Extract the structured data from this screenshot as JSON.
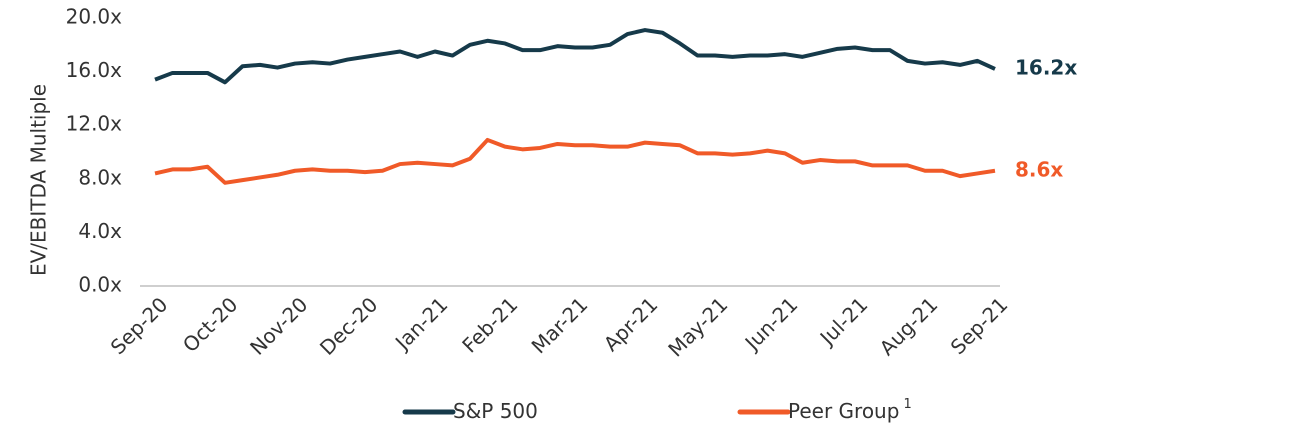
{
  "chart_data": {
    "type": "line",
    "y_label": "EV/EBITDA Multiple",
    "categories": [
      "Sep-20",
      null,
      null,
      null,
      "Oct-20",
      null,
      null,
      null,
      "Nov-20",
      null,
      null,
      null,
      "Dec-20",
      null,
      null,
      null,
      "Jan-21",
      null,
      null,
      null,
      "Feb-21",
      null,
      null,
      null,
      "Mar-21",
      null,
      null,
      null,
      "Apr-21",
      null,
      null,
      null,
      "May-21",
      null,
      null,
      null,
      "Jun-21",
      null,
      null,
      null,
      "Jul-21",
      null,
      null,
      null,
      "Aug-21",
      null,
      null,
      null,
      "Sep-21"
    ],
    "series": [
      {
        "name": "S&P 500",
        "color": "#163a4a",
        "values": [
          15.4,
          15.9,
          15.9,
          15.9,
          15.2,
          16.4,
          16.5,
          16.3,
          16.6,
          16.7,
          16.6,
          16.9,
          17.1,
          17.3,
          17.5,
          17.1,
          17.5,
          17.2,
          18.0,
          18.3,
          18.1,
          17.6,
          17.6,
          17.9,
          17.8,
          17.8,
          18.0,
          18.8,
          19.1,
          18.9,
          18.1,
          17.2,
          17.2,
          17.1,
          17.2,
          17.2,
          17.3,
          17.1,
          17.4,
          17.7,
          17.8,
          17.6,
          17.6,
          16.8,
          16.6,
          16.7,
          16.5,
          16.8,
          16.2
        ],
        "value_labels": [
          null,
          null,
          null,
          null,
          null,
          null,
          null,
          null,
          null,
          null,
          null,
          null,
          null,
          null,
          null,
          null,
          null,
          null,
          null,
          null,
          null,
          null,
          null,
          null,
          null,
          null,
          null,
          null,
          null,
          null,
          null,
          null,
          null,
          null,
          null,
          null,
          null,
          null,
          null,
          null,
          null,
          null,
          null,
          null,
          null,
          null,
          null,
          null,
          "16.2x"
        ]
      },
      {
        "name": "Peer Group",
        "note": "1",
        "color": "#f05a28",
        "values": [
          8.4,
          8.7,
          8.7,
          8.9,
          7.7,
          7.9,
          8.1,
          8.3,
          8.6,
          8.7,
          8.6,
          8.6,
          8.5,
          8.6,
          9.1,
          9.2,
          9.1,
          9.0,
          9.5,
          10.9,
          10.4,
          10.2,
          10.3,
          10.6,
          10.5,
          10.5,
          10.4,
          10.4,
          10.7,
          10.6,
          10.5,
          9.9,
          9.9,
          9.8,
          9.9,
          10.1,
          9.9,
          9.2,
          9.4,
          9.3,
          9.3,
          9.0,
          9.0,
          9.0,
          8.6,
          8.6,
          8.2,
          8.4,
          8.6
        ],
        "value_labels": [
          null,
          null,
          null,
          null,
          null,
          null,
          null,
          null,
          null,
          null,
          null,
          null,
          null,
          null,
          null,
          null,
          null,
          null,
          null,
          null,
          null,
          null,
          null,
          null,
          null,
          null,
          null,
          null,
          null,
          null,
          null,
          null,
          null,
          null,
          null,
          null,
          null,
          null,
          null,
          null,
          null,
          null,
          null,
          null,
          null,
          null,
          null,
          null,
          "8.6x"
        ]
      }
    ],
    "ylim": [
      0,
      20
    ],
    "yticks": [
      {
        "value": 0,
        "label": "0.0x"
      },
      {
        "value": 4,
        "label": "4.0x"
      },
      {
        "value": 8,
        "label": "8.0x"
      },
      {
        "value": 12,
        "label": "12.0x"
      },
      {
        "value": 16,
        "label": "16.0x"
      },
      {
        "value": 20,
        "label": "20.0x"
      }
    ],
    "grid": false
  }
}
